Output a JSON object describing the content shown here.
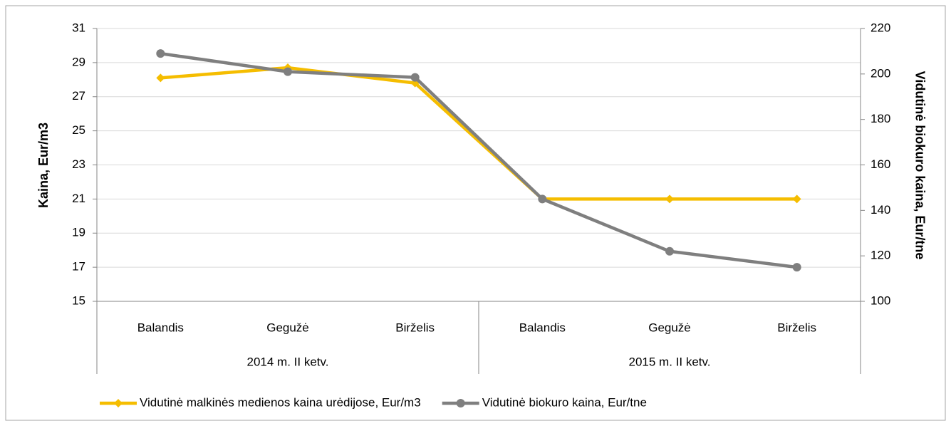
{
  "chart_data": {
    "type": "line",
    "categories": [
      "Balandis",
      "Gegužė",
      "Birželis",
      "Balandis",
      "Gegužė",
      "Birželis"
    ],
    "category_groups": [
      "2014 m. II ketv.",
      "2015 m. II ketv."
    ],
    "y_label": "Kaina, Eur/m3",
    "y2_label": "Vidutinė biokuro kaina, Eur/tne",
    "ylim": [
      15,
      31
    ],
    "yticks": [
      15,
      17,
      19,
      21,
      23,
      25,
      27,
      29,
      31
    ],
    "y2lim": [
      100,
      220
    ],
    "y2ticks": [
      100,
      120,
      140,
      160,
      180,
      200,
      220
    ],
    "grid": true,
    "legend": "bottom",
    "series": [
      {
        "name": "Vidutinė malkinės medienos kaina urėdijose, Eur/m3",
        "color": "#f5bd00",
        "marker": "diamond",
        "values": [
          28.1,
          28.7,
          27.8,
          21,
          21,
          21
        ]
      },
      {
        "name": "Vidutinė biokuro kaina, Eur/tne",
        "color": "#7f7f7f",
        "marker": "circle",
        "axis": "y2",
        "values": [
          209,
          201,
          198.5,
          145,
          122,
          115
        ]
      }
    ]
  }
}
